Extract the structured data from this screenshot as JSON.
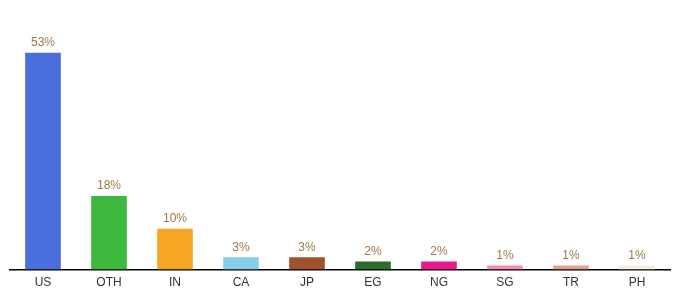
{
  "chart_data": {
    "type": "bar",
    "categories": [
      "US",
      "OTH",
      "IN",
      "CA",
      "JP",
      "EG",
      "NG",
      "SG",
      "TR",
      "PH"
    ],
    "values": [
      53,
      18,
      10,
      3,
      3,
      2,
      2,
      1,
      1,
      1
    ],
    "value_labels": [
      "53%",
      "18%",
      "10%",
      "3%",
      "3%",
      "2%",
      "2%",
      "1%",
      "1%",
      "1%"
    ],
    "colors": [
      "#4a6fdc",
      "#3cb83c",
      "#f5a623",
      "#87ceeb",
      "#a0522d",
      "#2e6b2e",
      "#e8198a",
      "#f48fb1",
      "#e8a090",
      "#f5f0dc"
    ],
    "ylim": [
      0,
      60
    ],
    "grid": false,
    "data_labels": true,
    "tick_labels": "x"
  }
}
